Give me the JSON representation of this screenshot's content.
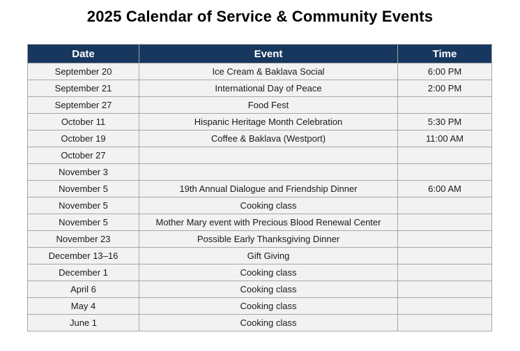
{
  "page": {
    "title": "2025 Calendar of Service & Community Events"
  },
  "colors": {
    "header_bg": "#17375E",
    "header_text": "#FFFFFF",
    "row_bg": "#F2F2F2",
    "border": "#A6A6A6",
    "title_text": "#000000"
  },
  "table": {
    "columns": [
      {
        "label": "Date"
      },
      {
        "label": "Event"
      },
      {
        "label": "Time"
      }
    ],
    "rows": [
      {
        "date": "September 20",
        "event": "Ice Cream & Baklava Social",
        "time": "6:00 PM"
      },
      {
        "date": "September 21",
        "event": "International Day of Peace",
        "time": "2:00 PM"
      },
      {
        "date": "September 27",
        "event": "Food Fest",
        "time": ""
      },
      {
        "date": "October 11",
        "event": "Hispanic Heritage Month Celebration",
        "time": "5:30 PM"
      },
      {
        "date": "October 19",
        "event": "Coffee & Baklava (Westport)",
        "time": "11:00 AM"
      },
      {
        "date": "October 27",
        "event": "",
        "time": ""
      },
      {
        "date": "November 3",
        "event": "",
        "time": ""
      },
      {
        "date": "November 5",
        "event": "19th Annual Dialogue and Friendship Dinner",
        "time": "6:00 AM"
      },
      {
        "date": "November 5",
        "event": "Cooking class",
        "time": ""
      },
      {
        "date": "November 5",
        "event": "Mother Mary event with Precious Blood Renewal Center",
        "time": ""
      },
      {
        "date": "November 23",
        "event": "Possible Early Thanksgiving Dinner",
        "time": ""
      },
      {
        "date": "December 13–16",
        "event": "Gift Giving",
        "time": ""
      },
      {
        "date": "December 1",
        "event": "Cooking class",
        "time": ""
      },
      {
        "date": "April 6",
        "event": "Cooking class",
        "time": ""
      },
      {
        "date": "May 4",
        "event": "Cooking class",
        "time": ""
      },
      {
        "date": "June 1",
        "event": "Cooking class",
        "time": ""
      }
    ]
  }
}
